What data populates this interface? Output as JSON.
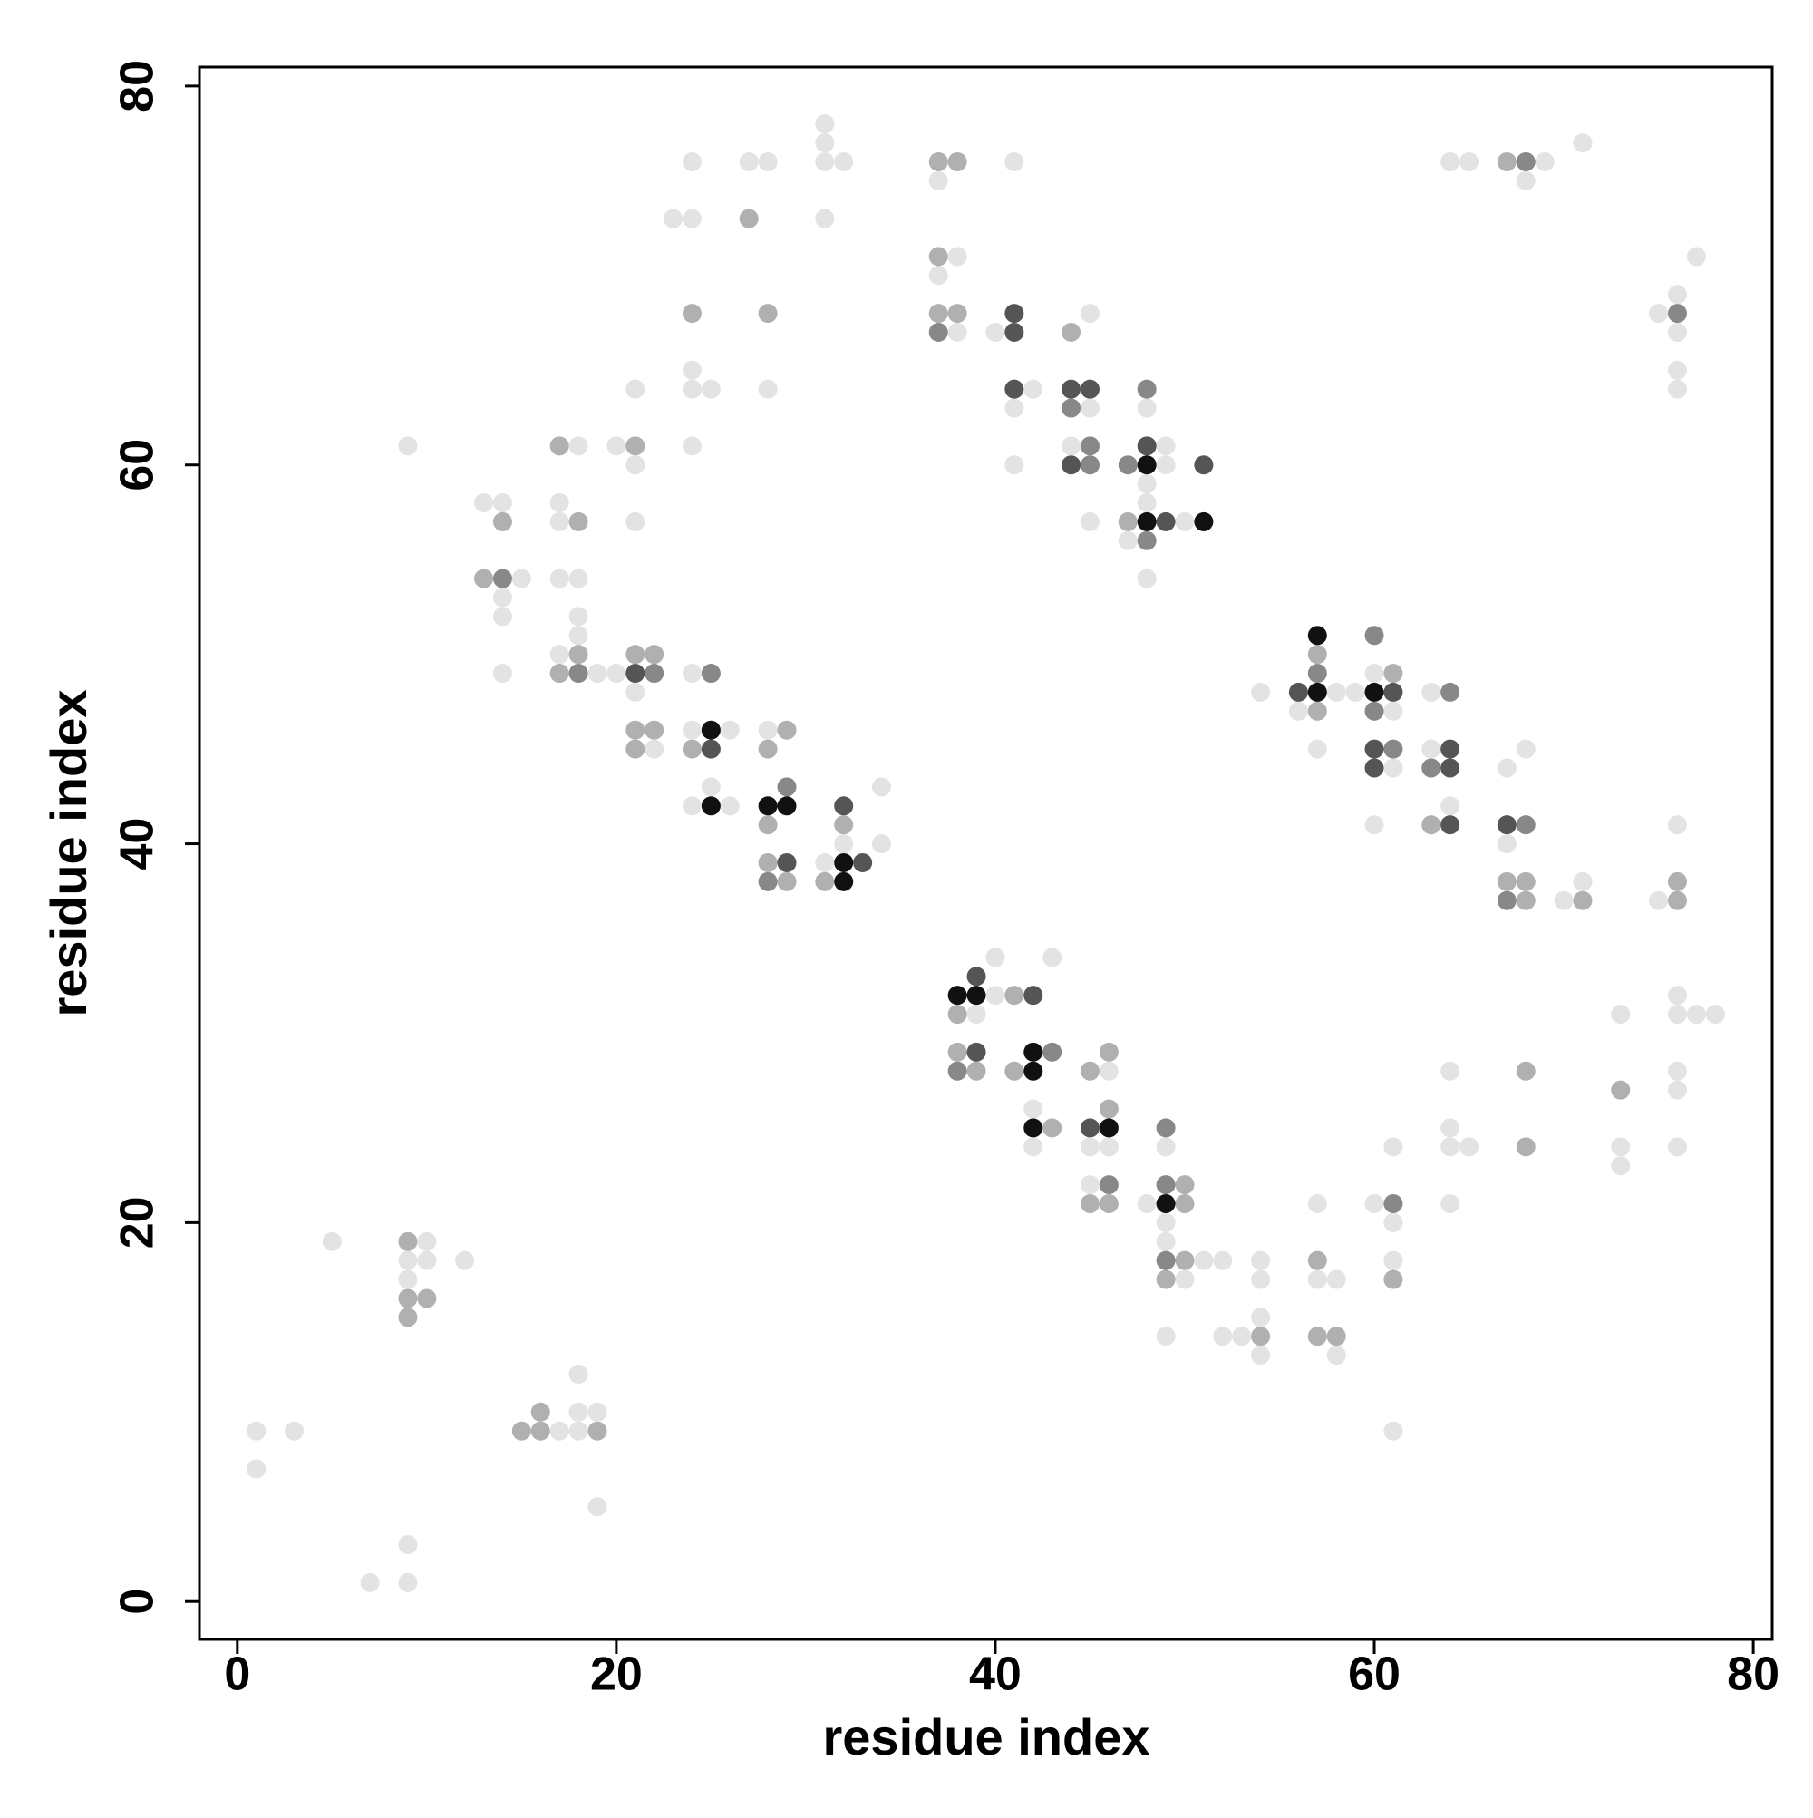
{
  "chart_data": {
    "type": "scatter",
    "xlabel": "residue index",
    "ylabel": "residue index",
    "xlim": [
      -2,
      81
    ],
    "ylim": [
      -2,
      81
    ],
    "xticks": [
      0,
      20,
      40,
      60,
      80
    ],
    "yticks": [
      0,
      20,
      40,
      60,
      80
    ],
    "series": [
      {
        "color": "#e3e3e3",
        "x": [
          31,
          31,
          71,
          24,
          27,
          28,
          31,
          32,
          41,
          64,
          65,
          69,
          37,
          68,
          23,
          24,
          31,
          38,
          77,
          37,
          76,
          75,
          45,
          38,
          40,
          76,
          24,
          76,
          21,
          24,
          25,
          28,
          42,
          76,
          41,
          45,
          48,
          9,
          18,
          20,
          24,
          44,
          49,
          21,
          41,
          49,
          48,
          13,
          14,
          17,
          48,
          17,
          21,
          45,
          50,
          47,
          15,
          17,
          18,
          48,
          14,
          14,
          18,
          18,
          17,
          14,
          19,
          20,
          24,
          60,
          21,
          54,
          58,
          59,
          63,
          56,
          61,
          24,
          26,
          28,
          22,
          57,
          63,
          68,
          61,
          67,
          25,
          34,
          24,
          26,
          64,
          60,
          76,
          32,
          34,
          67,
          31,
          71,
          70,
          75,
          40,
          43,
          40,
          76,
          39,
          73,
          76,
          77,
          78,
          46,
          64,
          76,
          76,
          42,
          64,
          42,
          45,
          46,
          49,
          61,
          64,
          65,
          73,
          76,
          73,
          45,
          48,
          57,
          60,
          64,
          49,
          61,
          5,
          10,
          49,
          9,
          10,
          12,
          51,
          52,
          54,
          61,
          9,
          50,
          54,
          57,
          58,
          54,
          49,
          52,
          53,
          54,
          58,
          18,
          18,
          19,
          1,
          3,
          17,
          18,
          61,
          1,
          19,
          9,
          7,
          9
        ],
        "y": [
          78,
          77,
          77,
          76,
          76,
          76,
          76,
          76,
          76,
          76,
          76,
          76,
          75,
          75,
          73,
          73,
          73,
          71,
          71,
          70,
          69,
          68,
          68,
          67,
          67,
          67,
          65,
          65,
          64,
          64,
          64,
          64,
          64,
          64,
          63,
          63,
          63,
          61,
          61,
          61,
          61,
          61,
          61,
          60,
          60,
          60,
          59,
          58,
          58,
          58,
          58,
          57,
          57,
          57,
          57,
          56,
          54,
          54,
          54,
          54,
          53,
          52,
          52,
          51,
          50,
          49,
          49,
          49,
          49,
          49,
          48,
          48,
          48,
          48,
          48,
          47,
          47,
          46,
          46,
          46,
          45,
          45,
          45,
          45,
          44,
          44,
          43,
          43,
          42,
          42,
          42,
          41,
          41,
          40,
          40,
          40,
          39,
          38,
          37,
          37,
          34,
          34,
          32,
          32,
          31,
          31,
          31,
          31,
          31,
          28,
          28,
          28,
          27,
          26,
          25,
          24,
          24,
          24,
          24,
          24,
          24,
          24,
          24,
          24,
          23,
          22,
          21,
          21,
          21,
          21,
          20,
          20,
          19,
          19,
          19,
          18,
          18,
          18,
          18,
          18,
          18,
          18,
          17,
          17,
          17,
          17,
          17,
          15,
          14,
          14,
          14,
          13,
          13,
          12,
          10,
          10,
          9,
          9,
          9,
          9,
          9,
          7,
          5,
          3,
          1,
          1
        ]
      },
      {
        "color": "#b0b0b0",
        "x": [
          37,
          38,
          67,
          27,
          37,
          24,
          28,
          37,
          38,
          44,
          17,
          21,
          14,
          18,
          47,
          13,
          18,
          21,
          22,
          57,
          17,
          61,
          57,
          21,
          22,
          29,
          21,
          24,
          28,
          28,
          32,
          63,
          28,
          29,
          31,
          67,
          68,
          76,
          68,
          71,
          76,
          41,
          38,
          38,
          46,
          39,
          41,
          45,
          68,
          73,
          46,
          43,
          68,
          50,
          45,
          46,
          50,
          9,
          50,
          57,
          49,
          61,
          9,
          10,
          9,
          54,
          57,
          58,
          16,
          15,
          16,
          19
        ],
        "y": [
          76,
          76,
          76,
          73,
          71,
          68,
          68,
          68,
          68,
          67,
          61,
          61,
          57,
          57,
          57,
          54,
          50,
          50,
          50,
          50,
          49,
          49,
          47,
          46,
          46,
          46,
          45,
          45,
          45,
          41,
          41,
          41,
          39,
          38,
          38,
          38,
          38,
          38,
          37,
          37,
          37,
          32,
          31,
          29,
          29,
          28,
          28,
          28,
          28,
          27,
          26,
          25,
          24,
          22,
          21,
          21,
          21,
          19,
          18,
          18,
          17,
          17,
          16,
          16,
          15,
          14,
          14,
          14,
          10,
          9,
          9,
          9
        ]
      },
      {
        "color": "#888888",
        "x": [
          68,
          76,
          37,
          44,
          48,
          45,
          45,
          47,
          48,
          14,
          60,
          18,
          22,
          25,
          57,
          64,
          60,
          61,
          63,
          29,
          68,
          28,
          67,
          43,
          38,
          49,
          46,
          49,
          61,
          49
        ],
        "y": [
          76,
          68,
          67,
          63,
          64,
          61,
          60,
          60,
          56,
          54,
          51,
          49,
          49,
          49,
          49,
          48,
          47,
          45,
          44,
          43,
          41,
          38,
          37,
          29,
          28,
          25,
          22,
          22,
          21,
          18
        ]
      },
      {
        "color": "#555555",
        "x": [
          41,
          41,
          41,
          44,
          45,
          48,
          44,
          51,
          49,
          21,
          56,
          61,
          25,
          60,
          64,
          60,
          64,
          32,
          64,
          67,
          29,
          33,
          39,
          42,
          39,
          45
        ],
        "y": [
          68,
          67,
          64,
          64,
          64,
          61,
          60,
          60,
          57,
          49,
          48,
          48,
          45,
          45,
          45,
          44,
          44,
          42,
          41,
          41,
          39,
          39,
          33,
          32,
          29,
          25
        ]
      },
      {
        "color": "#111111",
        "x": [
          48,
          48,
          51,
          57,
          57,
          60,
          25,
          25,
          28,
          29,
          32,
          32,
          38,
          39,
          42,
          42,
          42,
          46,
          49
        ],
        "y": [
          60,
          57,
          57,
          51,
          48,
          48,
          46,
          42,
          42,
          42,
          39,
          38,
          32,
          32,
          29,
          28,
          25,
          25,
          21
        ]
      }
    ]
  }
}
